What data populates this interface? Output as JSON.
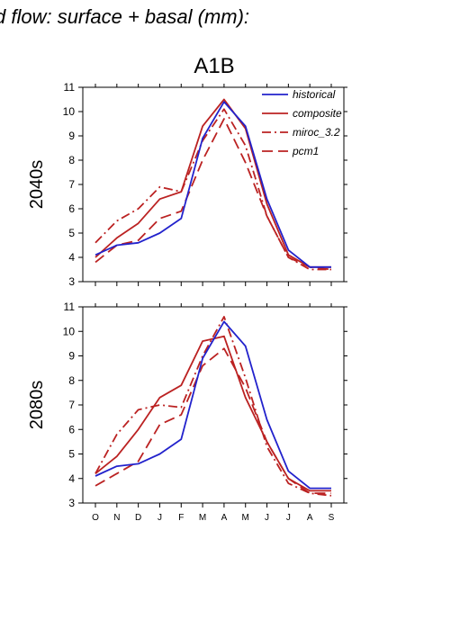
{
  "figure_title": "d flow: surface + basal (mm):",
  "scenario_title": "A1B",
  "colors": {
    "historical": "#2222cc",
    "projection": "#bb2222"
  },
  "chart_data": [
    {
      "type": "line",
      "panel_label": "2040s",
      "categories": [
        "O",
        "N",
        "D",
        "J",
        "F",
        "M",
        "A",
        "M",
        "J",
        "J",
        "A",
        "S"
      ],
      "ylim": [
        3,
        11
      ],
      "yticks": [
        3,
        4,
        5,
        6,
        7,
        8,
        9,
        10,
        11
      ],
      "legend": {
        "placement": "top-right"
      },
      "series": [
        {
          "name": "historical",
          "style": "solid",
          "color": "#2222cc",
          "values": [
            4.1,
            4.5,
            4.6,
            5.0,
            5.6,
            8.9,
            10.4,
            9.4,
            6.4,
            4.3,
            3.6,
            3.6
          ]
        },
        {
          "name": "composite",
          "style": "solid",
          "color": "#bb2222",
          "values": [
            4.0,
            4.8,
            5.4,
            6.4,
            6.7,
            9.4,
            10.5,
            9.3,
            6.2,
            4.1,
            3.6,
            3.6
          ]
        },
        {
          "name": "miroc_3.2",
          "style": "dashdot",
          "color": "#bb2222",
          "values": [
            4.6,
            5.5,
            6.0,
            6.9,
            6.7,
            8.8,
            10.1,
            8.6,
            5.7,
            4.0,
            3.5,
            3.5
          ]
        },
        {
          "name": "pcm1",
          "style": "longdash",
          "color": "#bb2222",
          "values": [
            3.8,
            4.5,
            4.7,
            5.6,
            5.9,
            8.0,
            9.7,
            7.9,
            5.7,
            4.0,
            3.6,
            3.5
          ]
        }
      ]
    },
    {
      "type": "line",
      "panel_label": "2080s",
      "categories": [
        "O",
        "N",
        "D",
        "J",
        "F",
        "M",
        "A",
        "M",
        "J",
        "J",
        "A",
        "S"
      ],
      "ylim": [
        3,
        11
      ],
      "yticks": [
        3,
        4,
        5,
        6,
        7,
        8,
        9,
        10,
        11
      ],
      "series": [
        {
          "name": "historical",
          "style": "solid",
          "color": "#2222cc",
          "values": [
            4.1,
            4.5,
            4.6,
            5.0,
            5.6,
            8.9,
            10.4,
            9.4,
            6.4,
            4.3,
            3.6,
            3.6
          ]
        },
        {
          "name": "composite",
          "style": "solid",
          "color": "#bb2222",
          "values": [
            4.2,
            4.9,
            6.0,
            7.3,
            7.8,
            9.6,
            9.8,
            7.3,
            5.5,
            4.0,
            3.5,
            3.5
          ]
        },
        {
          "name": "miroc_3.2",
          "style": "dashdot",
          "color": "#bb2222",
          "values": [
            4.2,
            5.8,
            6.8,
            7.0,
            6.9,
            9.0,
            10.6,
            8.1,
            5.3,
            3.8,
            3.4,
            3.3
          ]
        },
        {
          "name": "pcm1",
          "style": "longdash",
          "color": "#bb2222",
          "values": [
            3.7,
            4.2,
            4.7,
            6.2,
            6.6,
            8.6,
            9.3,
            7.7,
            5.5,
            4.0,
            3.4,
            3.4
          ]
        }
      ]
    }
  ]
}
